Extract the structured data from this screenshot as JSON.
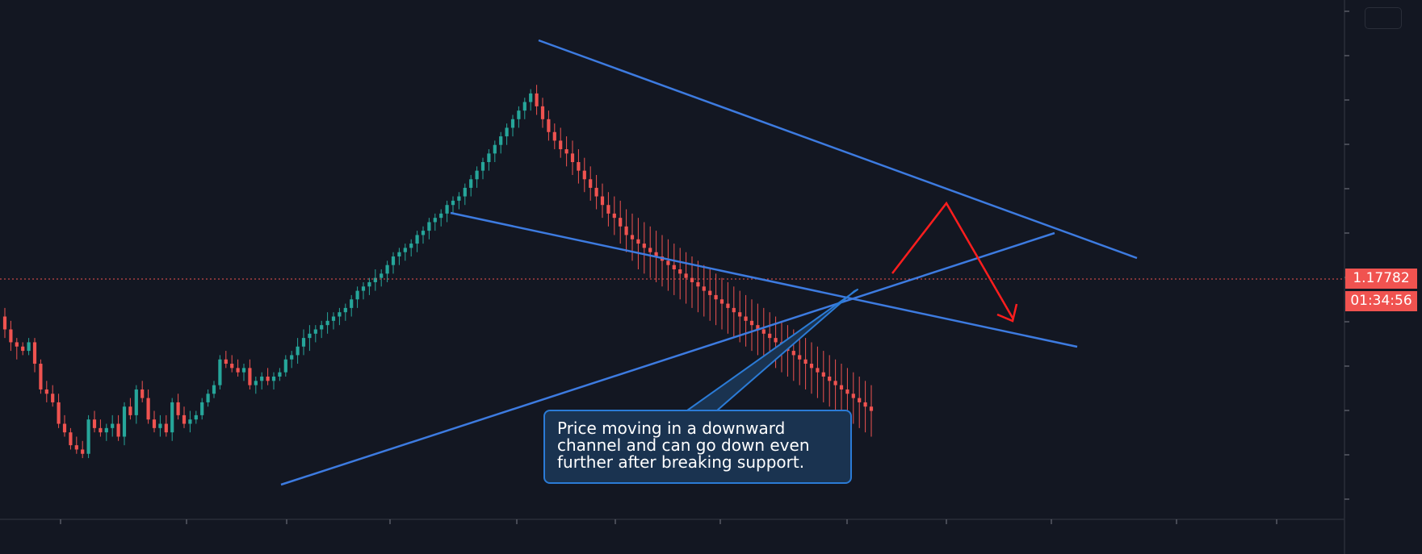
{
  "annotation": {
    "lines": [
      "Price moving in a downward",
      "channel and can go down even",
      "further after breaking support."
    ]
  },
  "price_badge": "1.17782",
  "countdown": "01:34:56",
  "colors": {
    "background": "#131722",
    "bullish": "#26a69a",
    "bearish": "#ef5350",
    "trendline": "#3d7be0",
    "projection": "#ff1e1e",
    "callout_fill": "#1a3350",
    "callout_border": "#2b7bd6"
  },
  "chart_data": {
    "type": "candlestick",
    "title": "",
    "xlabel": "",
    "ylabel": "",
    "current_price": 1.17782,
    "x_tick_labels": [],
    "y_tick_labels": [],
    "grid": false,
    "candles_ohlc_relative": [
      [
        0.39,
        0.41,
        0.34,
        0.36
      ],
      [
        0.36,
        0.38,
        0.31,
        0.33
      ],
      [
        0.33,
        0.34,
        0.29,
        0.32
      ],
      [
        0.32,
        0.33,
        0.3,
        0.31
      ],
      [
        0.31,
        0.34,
        0.3,
        0.33
      ],
      [
        0.33,
        0.34,
        0.26,
        0.28
      ],
      [
        0.28,
        0.29,
        0.21,
        0.22
      ],
      [
        0.22,
        0.24,
        0.19,
        0.21
      ],
      [
        0.21,
        0.23,
        0.18,
        0.19
      ],
      [
        0.19,
        0.21,
        0.13,
        0.14
      ],
      [
        0.14,
        0.16,
        0.11,
        0.12
      ],
      [
        0.12,
        0.13,
        0.08,
        0.09
      ],
      [
        0.09,
        0.11,
        0.07,
        0.08
      ],
      [
        0.08,
        0.1,
        0.06,
        0.07
      ],
      [
        0.07,
        0.16,
        0.06,
        0.15
      ],
      [
        0.15,
        0.17,
        0.12,
        0.13
      ],
      [
        0.13,
        0.15,
        0.11,
        0.12
      ],
      [
        0.12,
        0.14,
        0.1,
        0.13
      ],
      [
        0.13,
        0.16,
        0.11,
        0.14
      ],
      [
        0.14,
        0.16,
        0.1,
        0.11
      ],
      [
        0.11,
        0.19,
        0.09,
        0.18
      ],
      [
        0.18,
        0.2,
        0.15,
        0.16
      ],
      [
        0.16,
        0.23,
        0.14,
        0.22
      ],
      [
        0.22,
        0.24,
        0.19,
        0.2
      ],
      [
        0.2,
        0.22,
        0.14,
        0.15
      ],
      [
        0.15,
        0.17,
        0.12,
        0.13
      ],
      [
        0.13,
        0.16,
        0.11,
        0.14
      ],
      [
        0.14,
        0.16,
        0.11,
        0.12
      ],
      [
        0.12,
        0.2,
        0.1,
        0.19
      ],
      [
        0.19,
        0.21,
        0.15,
        0.16
      ],
      [
        0.16,
        0.18,
        0.13,
        0.14
      ],
      [
        0.14,
        0.17,
        0.12,
        0.15
      ],
      [
        0.15,
        0.17,
        0.14,
        0.16
      ],
      [
        0.16,
        0.2,
        0.15,
        0.19
      ],
      [
        0.19,
        0.22,
        0.18,
        0.21
      ],
      [
        0.21,
        0.24,
        0.2,
        0.23
      ],
      [
        0.23,
        0.3,
        0.22,
        0.29
      ],
      [
        0.29,
        0.31,
        0.27,
        0.28
      ],
      [
        0.28,
        0.3,
        0.26,
        0.27
      ],
      [
        0.27,
        0.29,
        0.25,
        0.26
      ],
      [
        0.26,
        0.28,
        0.24,
        0.27
      ],
      [
        0.27,
        0.29,
        0.22,
        0.23
      ],
      [
        0.23,
        0.25,
        0.21,
        0.24
      ],
      [
        0.24,
        0.26,
        0.22,
        0.25
      ],
      [
        0.25,
        0.27,
        0.23,
        0.24
      ],
      [
        0.24,
        0.26,
        0.22,
        0.25
      ],
      [
        0.25,
        0.27,
        0.24,
        0.26
      ],
      [
        0.26,
        0.3,
        0.25,
        0.29
      ],
      [
        0.29,
        0.31,
        0.27,
        0.3
      ],
      [
        0.3,
        0.34,
        0.28,
        0.32
      ],
      [
        0.32,
        0.36,
        0.3,
        0.34
      ],
      [
        0.34,
        0.37,
        0.31,
        0.35
      ],
      [
        0.35,
        0.37,
        0.33,
        0.36
      ],
      [
        0.36,
        0.38,
        0.34,
        0.37
      ],
      [
        0.37,
        0.4,
        0.35,
        0.38
      ],
      [
        0.38,
        0.4,
        0.36,
        0.39
      ],
      [
        0.39,
        0.41,
        0.37,
        0.4
      ],
      [
        0.4,
        0.42,
        0.38,
        0.41
      ],
      [
        0.41,
        0.44,
        0.39,
        0.43
      ],
      [
        0.43,
        0.46,
        0.41,
        0.45
      ],
      [
        0.45,
        0.47,
        0.43,
        0.46
      ],
      [
        0.46,
        0.48,
        0.44,
        0.47
      ],
      [
        0.47,
        0.5,
        0.45,
        0.48
      ],
      [
        0.48,
        0.5,
        0.46,
        0.49
      ],
      [
        0.49,
        0.52,
        0.47,
        0.51
      ],
      [
        0.51,
        0.54,
        0.49,
        0.53
      ],
      [
        0.53,
        0.55,
        0.51,
        0.54
      ],
      [
        0.54,
        0.56,
        0.52,
        0.55
      ],
      [
        0.55,
        0.57,
        0.53,
        0.56
      ],
      [
        0.56,
        0.59,
        0.54,
        0.58
      ],
      [
        0.58,
        0.6,
        0.56,
        0.59
      ],
      [
        0.59,
        0.62,
        0.57,
        0.61
      ],
      [
        0.61,
        0.63,
        0.59,
        0.62
      ],
      [
        0.62,
        0.64,
        0.6,
        0.63
      ],
      [
        0.63,
        0.66,
        0.61,
        0.65
      ],
      [
        0.65,
        0.67,
        0.63,
        0.66
      ],
      [
        0.66,
        0.68,
        0.64,
        0.67
      ],
      [
        0.67,
        0.7,
        0.65,
        0.69
      ],
      [
        0.69,
        0.72,
        0.67,
        0.71
      ],
      [
        0.71,
        0.74,
        0.69,
        0.73
      ],
      [
        0.73,
        0.76,
        0.71,
        0.75
      ],
      [
        0.75,
        0.78,
        0.73,
        0.77
      ],
      [
        0.77,
        0.8,
        0.75,
        0.79
      ],
      [
        0.79,
        0.82,
        0.77,
        0.81
      ],
      [
        0.81,
        0.84,
        0.79,
        0.83
      ],
      [
        0.83,
        0.86,
        0.81,
        0.85
      ],
      [
        0.85,
        0.88,
        0.83,
        0.87
      ],
      [
        0.87,
        0.9,
        0.85,
        0.89
      ],
      [
        0.89,
        0.92,
        0.87,
        0.91
      ],
      [
        0.91,
        0.93,
        0.86,
        0.88
      ],
      [
        0.88,
        0.9,
        0.83,
        0.85
      ],
      [
        0.85,
        0.87,
        0.8,
        0.82
      ],
      [
        0.82,
        0.84,
        0.78,
        0.8
      ],
      [
        0.8,
        0.83,
        0.76,
        0.78
      ],
      [
        0.78,
        0.81,
        0.74,
        0.77
      ],
      [
        0.77,
        0.8,
        0.72,
        0.75
      ],
      [
        0.75,
        0.78,
        0.7,
        0.73
      ],
      [
        0.73,
        0.76,
        0.68,
        0.71
      ],
      [
        0.71,
        0.74,
        0.66,
        0.69
      ],
      [
        0.69,
        0.72,
        0.64,
        0.67
      ],
      [
        0.67,
        0.7,
        0.62,
        0.65
      ],
      [
        0.65,
        0.68,
        0.6,
        0.63
      ],
      [
        0.63,
        0.67,
        0.58,
        0.62
      ],
      [
        0.62,
        0.66,
        0.56,
        0.6
      ],
      [
        0.6,
        0.64,
        0.54,
        0.58
      ],
      [
        0.58,
        0.63,
        0.52,
        0.57
      ],
      [
        0.57,
        0.62,
        0.5,
        0.56
      ],
      [
        0.56,
        0.61,
        0.49,
        0.55
      ],
      [
        0.55,
        0.6,
        0.48,
        0.54
      ],
      [
        0.54,
        0.59,
        0.47,
        0.53
      ],
      [
        0.53,
        0.58,
        0.46,
        0.52
      ],
      [
        0.52,
        0.57,
        0.45,
        0.51
      ],
      [
        0.51,
        0.56,
        0.44,
        0.5
      ],
      [
        0.5,
        0.55,
        0.43,
        0.49
      ],
      [
        0.49,
        0.54,
        0.42,
        0.48
      ],
      [
        0.48,
        0.53,
        0.41,
        0.47
      ],
      [
        0.47,
        0.52,
        0.4,
        0.46
      ],
      [
        0.46,
        0.51,
        0.39,
        0.45
      ],
      [
        0.45,
        0.5,
        0.38,
        0.44
      ],
      [
        0.44,
        0.49,
        0.37,
        0.43
      ],
      [
        0.43,
        0.48,
        0.36,
        0.42
      ],
      [
        0.42,
        0.47,
        0.35,
        0.41
      ],
      [
        0.41,
        0.46,
        0.34,
        0.4
      ],
      [
        0.4,
        0.45,
        0.33,
        0.39
      ],
      [
        0.39,
        0.44,
        0.32,
        0.38
      ],
      [
        0.38,
        0.43,
        0.31,
        0.37
      ],
      [
        0.37,
        0.42,
        0.3,
        0.36
      ],
      [
        0.36,
        0.41,
        0.29,
        0.35
      ],
      [
        0.35,
        0.4,
        0.28,
        0.34
      ],
      [
        0.34,
        0.39,
        0.27,
        0.33
      ],
      [
        0.33,
        0.38,
        0.26,
        0.32
      ],
      [
        0.32,
        0.37,
        0.25,
        0.31
      ],
      [
        0.31,
        0.36,
        0.24,
        0.3
      ],
      [
        0.3,
        0.35,
        0.23,
        0.29
      ],
      [
        0.29,
        0.34,
        0.22,
        0.28
      ],
      [
        0.28,
        0.33,
        0.21,
        0.27
      ],
      [
        0.27,
        0.32,
        0.2,
        0.26
      ],
      [
        0.26,
        0.31,
        0.19,
        0.25
      ],
      [
        0.25,
        0.3,
        0.18,
        0.24
      ],
      [
        0.24,
        0.29,
        0.17,
        0.23
      ],
      [
        0.23,
        0.28,
        0.16,
        0.22
      ],
      [
        0.22,
        0.27,
        0.15,
        0.21
      ],
      [
        0.21,
        0.26,
        0.14,
        0.2
      ],
      [
        0.2,
        0.25,
        0.13,
        0.19
      ],
      [
        0.19,
        0.24,
        0.12,
        0.18
      ],
      [
        0.18,
        0.23,
        0.11,
        0.17
      ],
      [
        0.17,
        0.22,
        0.1,
        0.16
      ],
      [
        0.16,
        0.21,
        0.09,
        0.15
      ]
    ]
  }
}
